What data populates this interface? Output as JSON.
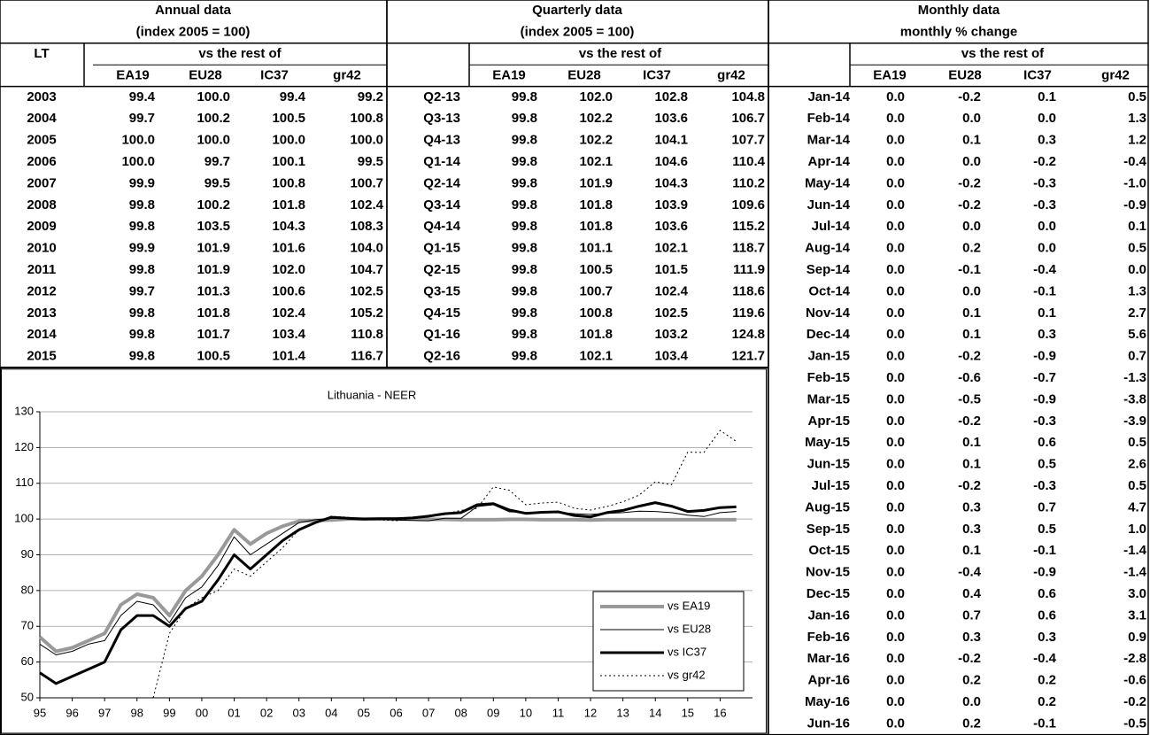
{
  "annual": {
    "title": "Annual data",
    "subtitle": "(index 2005 = 100)",
    "corner": "LT",
    "group": "vs the rest of",
    "columns": [
      "EA19",
      "EU28",
      "IC37",
      "gr42"
    ],
    "rows": [
      [
        "2003",
        "99.4",
        "100.0",
        "99.4",
        "99.2"
      ],
      [
        "2004",
        "99.7",
        "100.2",
        "100.5",
        "100.8"
      ],
      [
        "2005",
        "100.0",
        "100.0",
        "100.0",
        "100.0"
      ],
      [
        "2006",
        "100.0",
        "99.7",
        "100.1",
        "99.5"
      ],
      [
        "2007",
        "99.9",
        "99.5",
        "100.8",
        "100.7"
      ],
      [
        "2008",
        "99.8",
        "100.2",
        "101.8",
        "102.4"
      ],
      [
        "2009",
        "99.8",
        "103.5",
        "104.3",
        "108.3"
      ],
      [
        "2010",
        "99.9",
        "101.9",
        "101.6",
        "104.0"
      ],
      [
        "2011",
        "99.8",
        "101.9",
        "102.0",
        "104.7"
      ],
      [
        "2012",
        "99.7",
        "101.3",
        "100.6",
        "102.5"
      ],
      [
        "2013",
        "99.8",
        "101.8",
        "102.4",
        "105.2"
      ],
      [
        "2014",
        "99.8",
        "101.7",
        "103.4",
        "110.8"
      ],
      [
        "2015",
        "99.8",
        "100.5",
        "101.4",
        "116.7"
      ]
    ]
  },
  "quarterly": {
    "title": "Quarterly data",
    "subtitle": "(index 2005 = 100)",
    "group": "vs the rest of",
    "columns": [
      "EA19",
      "EU28",
      "IC37",
      "gr42"
    ],
    "rows": [
      [
        "Q2-13",
        "99.8",
        "102.0",
        "102.8",
        "104.8"
      ],
      [
        "Q3-13",
        "99.8",
        "102.2",
        "103.6",
        "106.7"
      ],
      [
        "Q4-13",
        "99.8",
        "102.2",
        "104.1",
        "107.7"
      ],
      [
        "Q1-14",
        "99.8",
        "102.1",
        "104.6",
        "110.4"
      ],
      [
        "Q2-14",
        "99.8",
        "101.9",
        "104.3",
        "110.2"
      ],
      [
        "Q3-14",
        "99.8",
        "101.8",
        "103.9",
        "109.6"
      ],
      [
        "Q4-14",
        "99.8",
        "101.8",
        "103.6",
        "115.2"
      ],
      [
        "Q1-15",
        "99.8",
        "101.1",
        "102.1",
        "118.7"
      ],
      [
        "Q2-15",
        "99.8",
        "100.5",
        "101.5",
        "111.9"
      ],
      [
        "Q3-15",
        "99.8",
        "100.7",
        "102.4",
        "118.6"
      ],
      [
        "Q4-15",
        "99.8",
        "100.8",
        "102.5",
        "119.6"
      ],
      [
        "Q1-16",
        "99.8",
        "101.8",
        "103.2",
        "124.8"
      ],
      [
        "Q2-16",
        "99.8",
        "102.1",
        "103.4",
        "121.7"
      ]
    ]
  },
  "monthly": {
    "title": "Monthly data",
    "subtitle": "monthly % change",
    "group": "vs the rest of",
    "columns": [
      "EA19",
      "EU28",
      "IC37",
      "gr42"
    ],
    "rows": [
      [
        "Jan-14",
        "0.0",
        "-0.2",
        "0.1",
        "0.5"
      ],
      [
        "Feb-14",
        "0.0",
        "0.0",
        "0.0",
        "1.3"
      ],
      [
        "Mar-14",
        "0.0",
        "0.1",
        "0.3",
        "1.2"
      ],
      [
        "Apr-14",
        "0.0",
        "0.0",
        "-0.2",
        "-0.4"
      ],
      [
        "May-14",
        "0.0",
        "-0.2",
        "-0.3",
        "-1.0"
      ],
      [
        "Jun-14",
        "0.0",
        "-0.2",
        "-0.3",
        "-0.9"
      ],
      [
        "Jul-14",
        "0.0",
        "0.0",
        "0.0",
        "0.1"
      ],
      [
        "Aug-14",
        "0.0",
        "0.2",
        "0.0",
        "0.5"
      ],
      [
        "Sep-14",
        "0.0",
        "-0.1",
        "-0.4",
        "0.0"
      ],
      [
        "Oct-14",
        "0.0",
        "0.0",
        "-0.1",
        "1.3"
      ],
      [
        "Nov-14",
        "0.0",
        "0.1",
        "0.1",
        "2.7"
      ],
      [
        "Dec-14",
        "0.0",
        "0.1",
        "0.3",
        "5.6"
      ],
      [
        "Jan-15",
        "0.0",
        "-0.2",
        "-0.9",
        "0.7"
      ],
      [
        "Feb-15",
        "0.0",
        "-0.6",
        "-0.7",
        "-1.3"
      ],
      [
        "Mar-15",
        "0.0",
        "-0.5",
        "-0.9",
        "-3.8"
      ],
      [
        "Apr-15",
        "0.0",
        "-0.2",
        "-0.3",
        "-3.9"
      ],
      [
        "May-15",
        "0.0",
        "0.1",
        "0.6",
        "0.5"
      ],
      [
        "Jun-15",
        "0.0",
        "0.1",
        "0.5",
        "2.6"
      ],
      [
        "Jul-15",
        "0.0",
        "-0.2",
        "-0.3",
        "0.5"
      ],
      [
        "Aug-15",
        "0.0",
        "0.3",
        "0.7",
        "4.7"
      ],
      [
        "Sep-15",
        "0.0",
        "0.3",
        "0.5",
        "1.0"
      ],
      [
        "Oct-15",
        "0.0",
        "0.1",
        "-0.1",
        "-1.4"
      ],
      [
        "Nov-15",
        "0.0",
        "-0.4",
        "-0.9",
        "-1.4"
      ],
      [
        "Dec-15",
        "0.0",
        "0.4",
        "0.6",
        "3.0"
      ],
      [
        "Jan-16",
        "0.0",
        "0.7",
        "0.6",
        "3.1"
      ],
      [
        "Feb-16",
        "0.0",
        "0.3",
        "0.3",
        "0.9"
      ],
      [
        "Mar-16",
        "0.0",
        "-0.2",
        "-0.4",
        "-2.8"
      ],
      [
        "Apr-16",
        "0.0",
        "0.2",
        "0.2",
        "-0.6"
      ],
      [
        "May-16",
        "0.0",
        "0.0",
        "0.2",
        "-0.2"
      ],
      [
        "Jun-16",
        "0.0",
        "0.2",
        "-0.1",
        "-0.5"
      ]
    ]
  },
  "chart_data": {
    "type": "line",
    "title": "Lithuania - NEER",
    "x": [
      1995,
      1995.5,
      1996,
      1996.5,
      1997,
      1997.5,
      1998,
      1998.5,
      1999,
      1999.5,
      2000,
      2000.5,
      2001,
      2001.5,
      2002,
      2002.5,
      2003,
      2003.5,
      2004,
      2004.5,
      2005,
      2005.5,
      2006,
      2006.5,
      2007,
      2007.5,
      2008,
      2008.5,
      2009,
      2009.5,
      2010,
      2010.5,
      2011,
      2011.5,
      2012,
      2012.5,
      2013,
      2013.5,
      2014,
      2014.5,
      2015,
      2015.5,
      2016,
      2016.5
    ],
    "xlim": [
      1995,
      2017
    ],
    "xticks": [
      {
        "value": 1995,
        "label": "95"
      },
      {
        "value": 1996,
        "label": "96"
      },
      {
        "value": 1997,
        "label": "97"
      },
      {
        "value": 1998,
        "label": "98"
      },
      {
        "value": 1999,
        "label": "99"
      },
      {
        "value": 2000,
        "label": "00"
      },
      {
        "value": 2001,
        "label": "01"
      },
      {
        "value": 2002,
        "label": "02"
      },
      {
        "value": 2003,
        "label": "03"
      },
      {
        "value": 2004,
        "label": "04"
      },
      {
        "value": 2005,
        "label": "05"
      },
      {
        "value": 2006,
        "label": "06"
      },
      {
        "value": 2007,
        "label": "07"
      },
      {
        "value": 2008,
        "label": "08"
      },
      {
        "value": 2009,
        "label": "09"
      },
      {
        "value": 2010,
        "label": "10"
      },
      {
        "value": 2011,
        "label": "11"
      },
      {
        "value": 2012,
        "label": "12"
      },
      {
        "value": 2013,
        "label": "13"
      },
      {
        "value": 2014,
        "label": "14"
      },
      {
        "value": 2015,
        "label": "15"
      },
      {
        "value": 2016,
        "label": "16"
      }
    ],
    "ylim": [
      50,
      130
    ],
    "yticks": [
      50,
      60,
      70,
      80,
      90,
      100,
      110,
      120,
      130
    ],
    "grid": true,
    "legend": "lower right",
    "series": [
      {
        "name": "vs EA19",
        "color": "#999999",
        "width": 4,
        "dotted": false,
        "values": [
          67,
          63,
          64,
          66,
          68,
          76,
          79,
          78,
          73,
          80,
          84,
          90,
          97,
          93,
          96,
          98,
          99.4,
          99.6,
          99.7,
          100,
          100,
          100,
          100,
          100,
          99.9,
          99.9,
          99.8,
          99.8,
          99.8,
          99.9,
          99.9,
          99.8,
          99.8,
          99.8,
          99.7,
          99.8,
          99.8,
          99.8,
          99.8,
          99.8,
          99.8,
          99.8,
          99.8,
          99.8
        ]
      },
      {
        "name": "vs EU28",
        "color": "#000000",
        "width": 1,
        "dotted": false,
        "values": [
          65,
          62,
          63,
          65,
          66,
          73,
          77,
          76,
          71,
          78,
          81,
          87,
          95,
          90,
          93,
          96,
          99,
          99.8,
          100.2,
          100,
          100,
          100,
          99.7,
          99.6,
          99.5,
          100.2,
          100.2,
          103.5,
          104,
          102,
          101.9,
          101.8,
          101.9,
          101.5,
          101.3,
          101.6,
          101.8,
          102.2,
          102.1,
          101.8,
          101.1,
          100.7,
          101.8,
          102.1
        ]
      },
      {
        "name": "vs IC37",
        "color": "#000000",
        "width": 3,
        "dotted": false,
        "values": [
          57,
          54,
          56,
          58,
          60,
          69,
          73,
          73,
          70,
          75,
          77,
          83,
          90,
          86,
          90,
          94,
          97,
          99,
          100.5,
          100.2,
          100,
          100.1,
          100.1,
          100.3,
          100.8,
          101.5,
          101.8,
          104,
          104.3,
          102.5,
          101.6,
          101.9,
          102,
          101,
          100.6,
          101.8,
          102.4,
          103.6,
          104.6,
          103.6,
          102.1,
          102.4,
          103.2,
          103.4
        ]
      },
      {
        "name": "vs gr42",
        "color": "#000000",
        "width": 1,
        "dotted": true,
        "values": [
          null,
          null,
          null,
          null,
          null,
          null,
          null,
          50,
          68,
          75,
          78,
          80,
          86,
          84,
          88,
          92,
          97,
          99,
          100.8,
          100.5,
          100,
          99.8,
          99.5,
          100.2,
          100.7,
          101.5,
          102.4,
          103,
          109,
          108,
          104,
          104.5,
          104.7,
          103,
          102.5,
          103.5,
          104.8,
          106.7,
          110.4,
          109.6,
          118.7,
          118.6,
          124.8,
          121.7
        ]
      }
    ]
  }
}
